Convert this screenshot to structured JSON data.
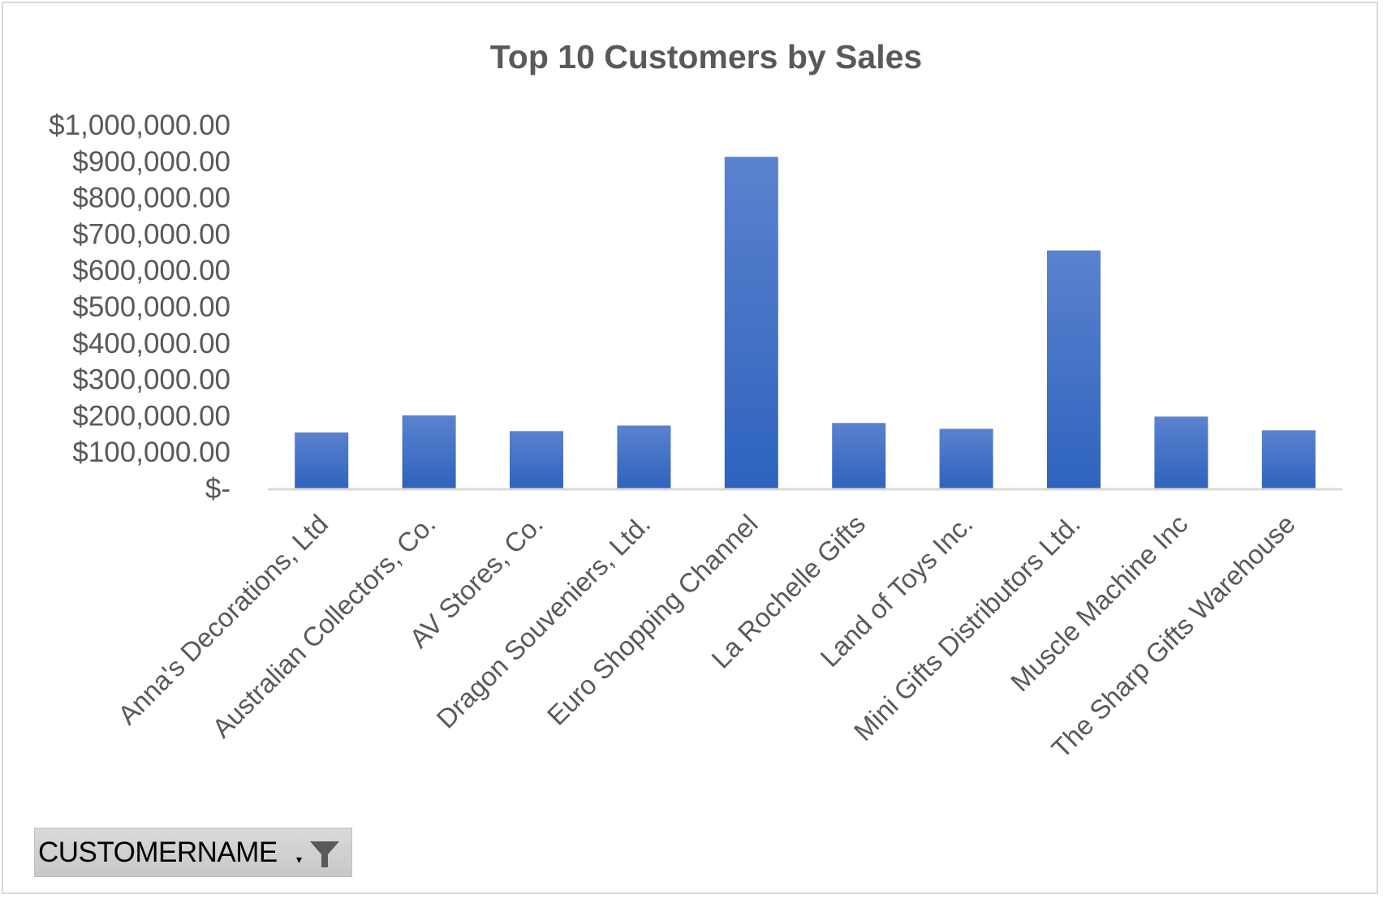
{
  "chart_data": {
    "type": "bar",
    "title": "Top 10 Customers by Sales",
    "categories": [
      "Anna's Decorations, Ltd",
      "Australian Collectors, Co.",
      "AV Stores, Co.",
      "Dragon Souveniers, Ltd.",
      "Euro Shopping Channel",
      "La Rochelle Gifts",
      "Land of Toys Inc.",
      "Mini Gifts Distributors Ltd.",
      "Muscle Machine Inc",
      "The Sharp Gifts Warehouse"
    ],
    "values": [
      153996,
      200995,
      157807,
      172990,
      912294,
      180125,
      164069,
      654858,
      197737,
      160010
    ],
    "ylim": [
      0,
      1000000
    ],
    "yticks": [
      0,
      100000,
      200000,
      300000,
      400000,
      500000,
      600000,
      700000,
      800000,
      900000,
      1000000
    ],
    "ytick_labels": [
      "$-",
      "$100,000.00",
      "$200,000.00",
      "$300,000.00",
      "$400,000.00",
      "$500,000.00",
      "$600,000.00",
      "$700,000.00",
      "$800,000.00",
      "$900,000.00",
      "$1,000,000.00"
    ],
    "xlabel": "",
    "ylabel": "",
    "grid": false,
    "legend": "none",
    "bar_color_top": "#5b82cf",
    "bar_color_bottom": "#2e63bd"
  },
  "field_button": {
    "label": "CUSTOMERNAME",
    "icon": "filter-icon"
  }
}
